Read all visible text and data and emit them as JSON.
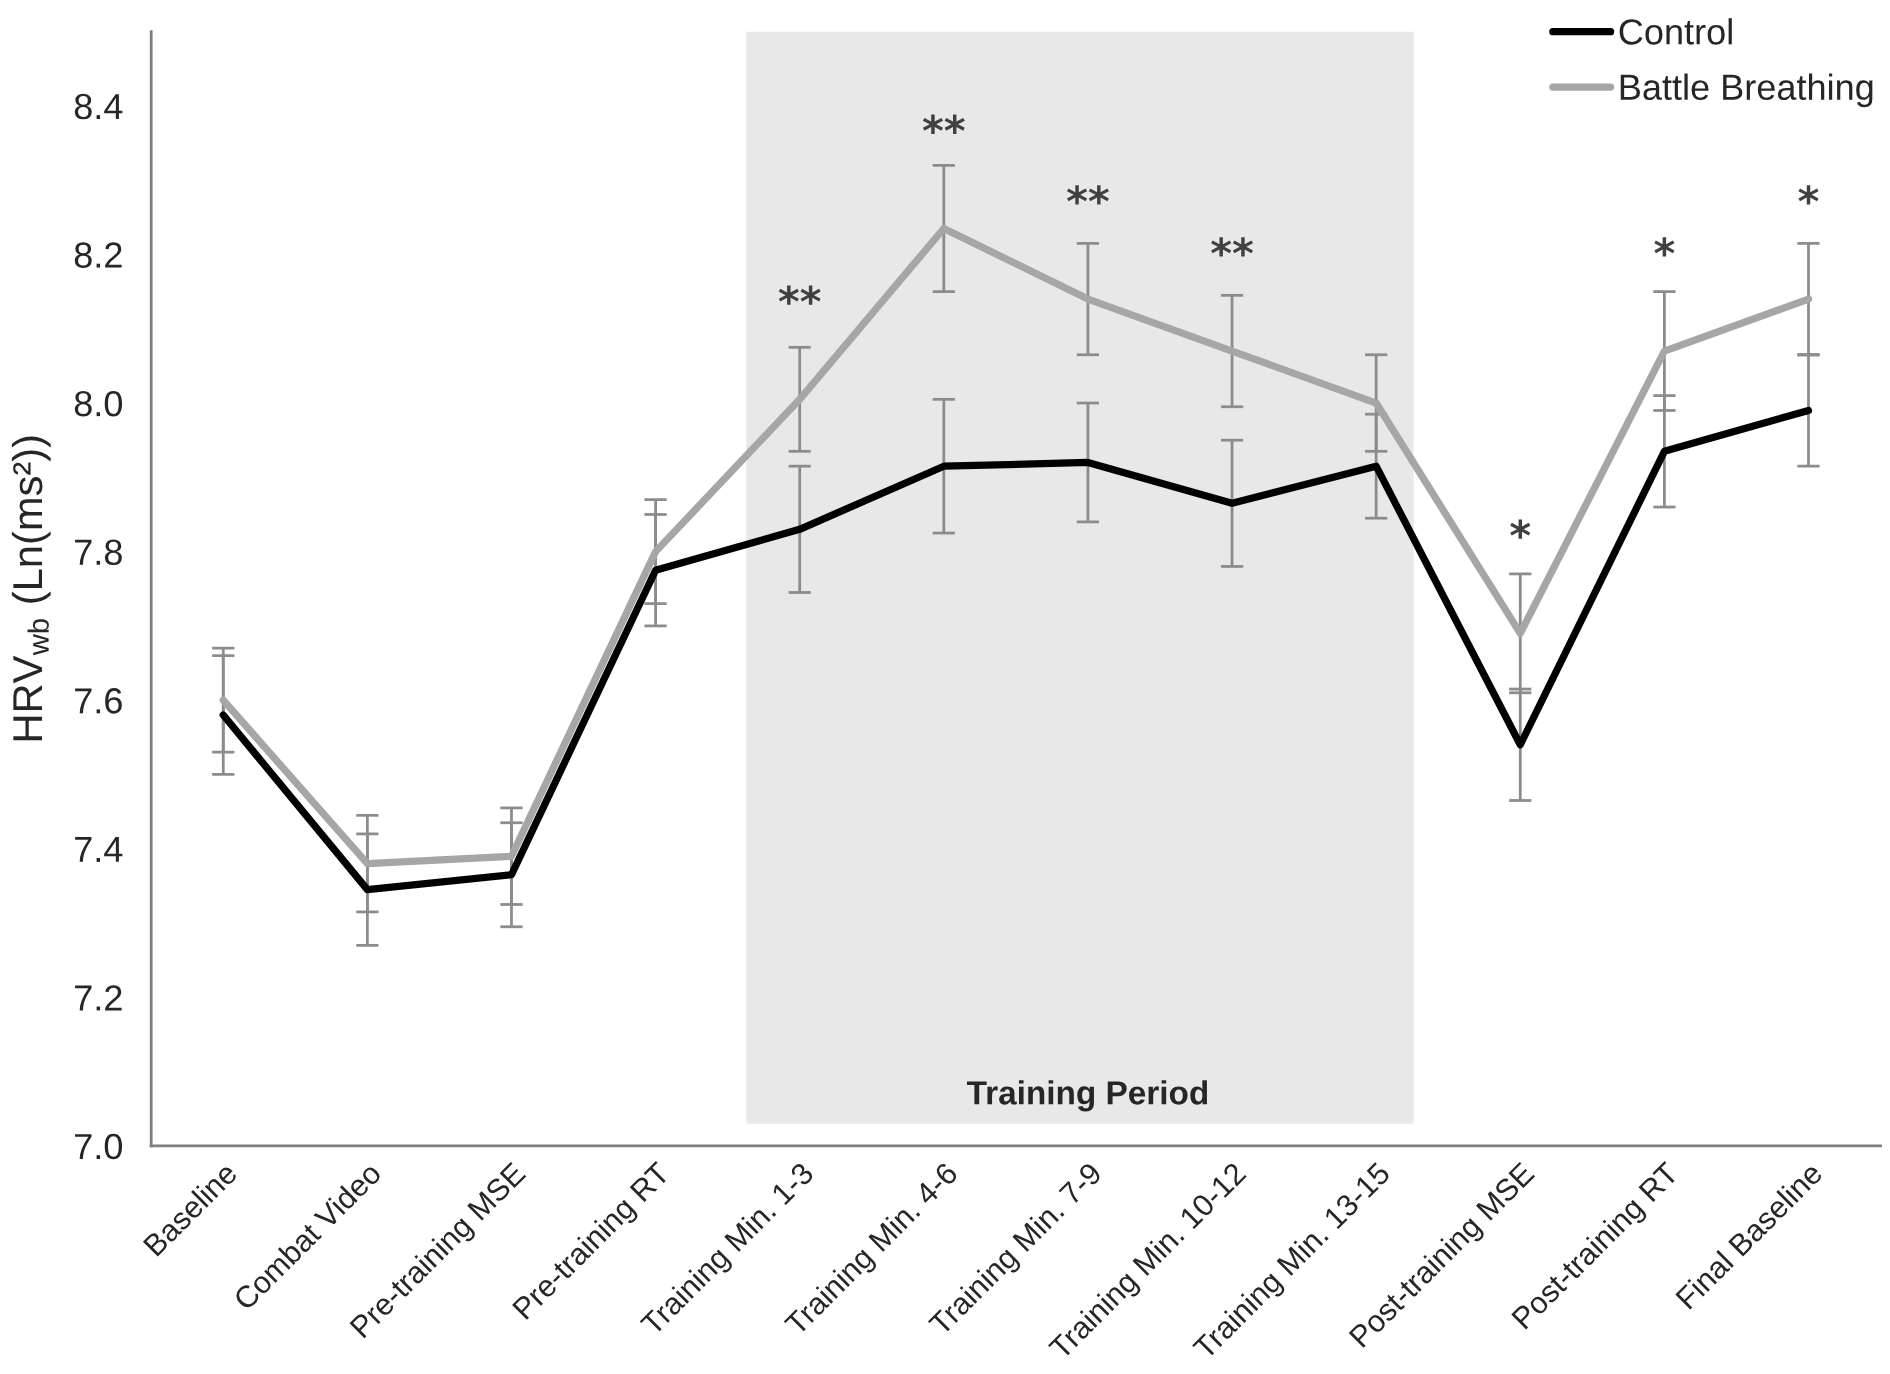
{
  "chart_data": {
    "type": "line",
    "ylabel": "HRV$_{wb}$ (Ln(ms²))",
    "categories": [
      "Baseline",
      "Combat Video",
      "Pre-training MSE",
      "Pre-training RT",
      "Training Min. 1-3",
      "Training Min. 4-6",
      "Training Min. 7-9",
      "Training Min. 10-12",
      "Training Min. 13-15",
      "Post-training MSE",
      "Post-training RT",
      "Final Baseline"
    ],
    "series": [
      {
        "name": "Control",
        "color": "#000000",
        "values": [
          7.58,
          7.345,
          7.365,
          7.775,
          7.83,
          7.915,
          7.92,
          7.865,
          7.915,
          7.54,
          7.935,
          7.99
        ],
        "errors": [
          0.08,
          0.075,
          0.07,
          0.075,
          0.085,
          0.09,
          0.08,
          0.085,
          0.07,
          0.075,
          0.075,
          0.075
        ]
      },
      {
        "name": "Battle Breathing",
        "color": "#a6a6a6",
        "values": [
          7.6,
          7.38,
          7.39,
          7.8,
          8.005,
          8.235,
          8.14,
          8.07,
          8.0,
          7.69,
          8.07,
          8.14
        ],
        "errors": [
          0.07,
          0.065,
          0.065,
          0.07,
          0.07,
          0.085,
          0.075,
          0.075,
          0.065,
          0.08,
          0.08,
          0.075
        ]
      }
    ],
    "ylim": [
      7,
      8.5
    ],
    "yticks": [
      {
        "value": 7,
        "label": "7.0"
      },
      {
        "value": 7.2,
        "label": "7.2"
      },
      {
        "value": 7.4,
        "label": "7.4"
      },
      {
        "value": 7.6,
        "label": "7.6"
      },
      {
        "value": 7.8,
        "label": "7.8"
      },
      {
        "value": 8,
        "label": "8.0"
      },
      {
        "value": 8.2,
        "label": "8.2"
      },
      {
        "value": 8.4,
        "label": "8.4"
      }
    ],
    "bands": [
      {
        "axis": "x",
        "from": "Training Min. 1-3",
        "to": "Training Min. 13-15",
        "label": "Training Period",
        "color": "#e8e8e8"
      }
    ],
    "annotations": [
      {
        "text": "**",
        "x": "Training Min. 1-3",
        "y": 8.005
      },
      {
        "text": "**",
        "x": "Training Min. 4-6",
        "y": 8.235
      },
      {
        "text": "**",
        "x": "Training Min. 7-9",
        "y": 8.14
      },
      {
        "text": "**",
        "x": "Training Min. 10-12",
        "y": 8.07
      },
      {
        "text": "*",
        "x": "Post-training MSE",
        "y": 7.69
      },
      {
        "text": "*",
        "x": "Post-training RT",
        "y": 8.07
      },
      {
        "text": "*",
        "x": "Final Baseline",
        "y": 8.14
      }
    ],
    "legend": "top right"
  }
}
